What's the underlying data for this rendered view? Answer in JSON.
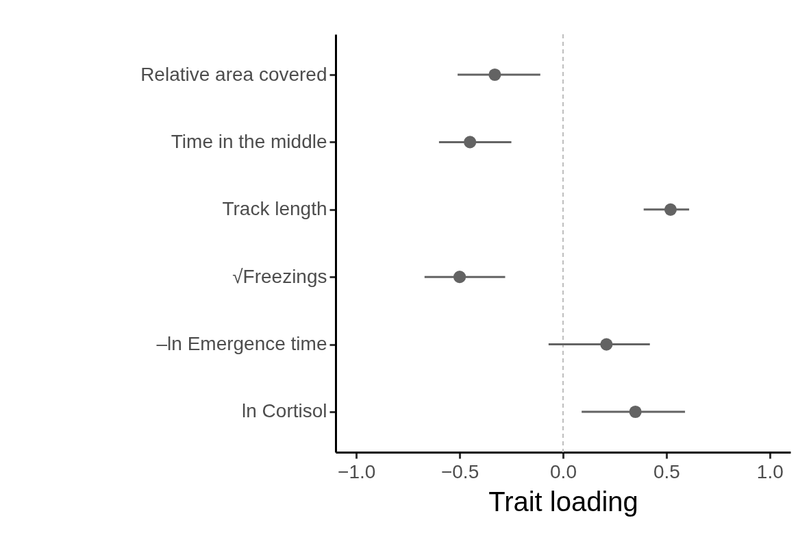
{
  "chart_data": {
    "type": "scatter",
    "orientation": "horizontal",
    "xlabel": "Trait loading",
    "marker": "circle",
    "categories": [
      "Relative area covered",
      "Time in the middle",
      "Track length",
      "√Freezings",
      "–ln Emergence time",
      "ln Cortisol"
    ],
    "values": [
      -0.33,
      -0.45,
      0.52,
      -0.5,
      0.21,
      0.35
    ],
    "errors": [
      [
        -0.51,
        -0.11
      ],
      [
        -0.6,
        -0.25
      ],
      [
        0.39,
        0.61
      ],
      [
        -0.67,
        -0.28
      ],
      [
        -0.07,
        0.42
      ],
      [
        0.09,
        0.59
      ]
    ],
    "color": "#636363",
    "xlim": [
      -1.1,
      1.1
    ],
    "xticks": [
      {
        "value": -1,
        "label": "−1.0"
      },
      {
        "value": -0.5,
        "label": "−0.5"
      },
      {
        "value": 0,
        "label": "0.0"
      },
      {
        "value": 0.5,
        "label": "0.5"
      },
      {
        "value": 1,
        "label": "1.0"
      }
    ],
    "ref_lines": [
      {
        "axis": "x",
        "value": 0,
        "color": "#bebebe",
        "line_style": "dashed"
      }
    ]
  }
}
